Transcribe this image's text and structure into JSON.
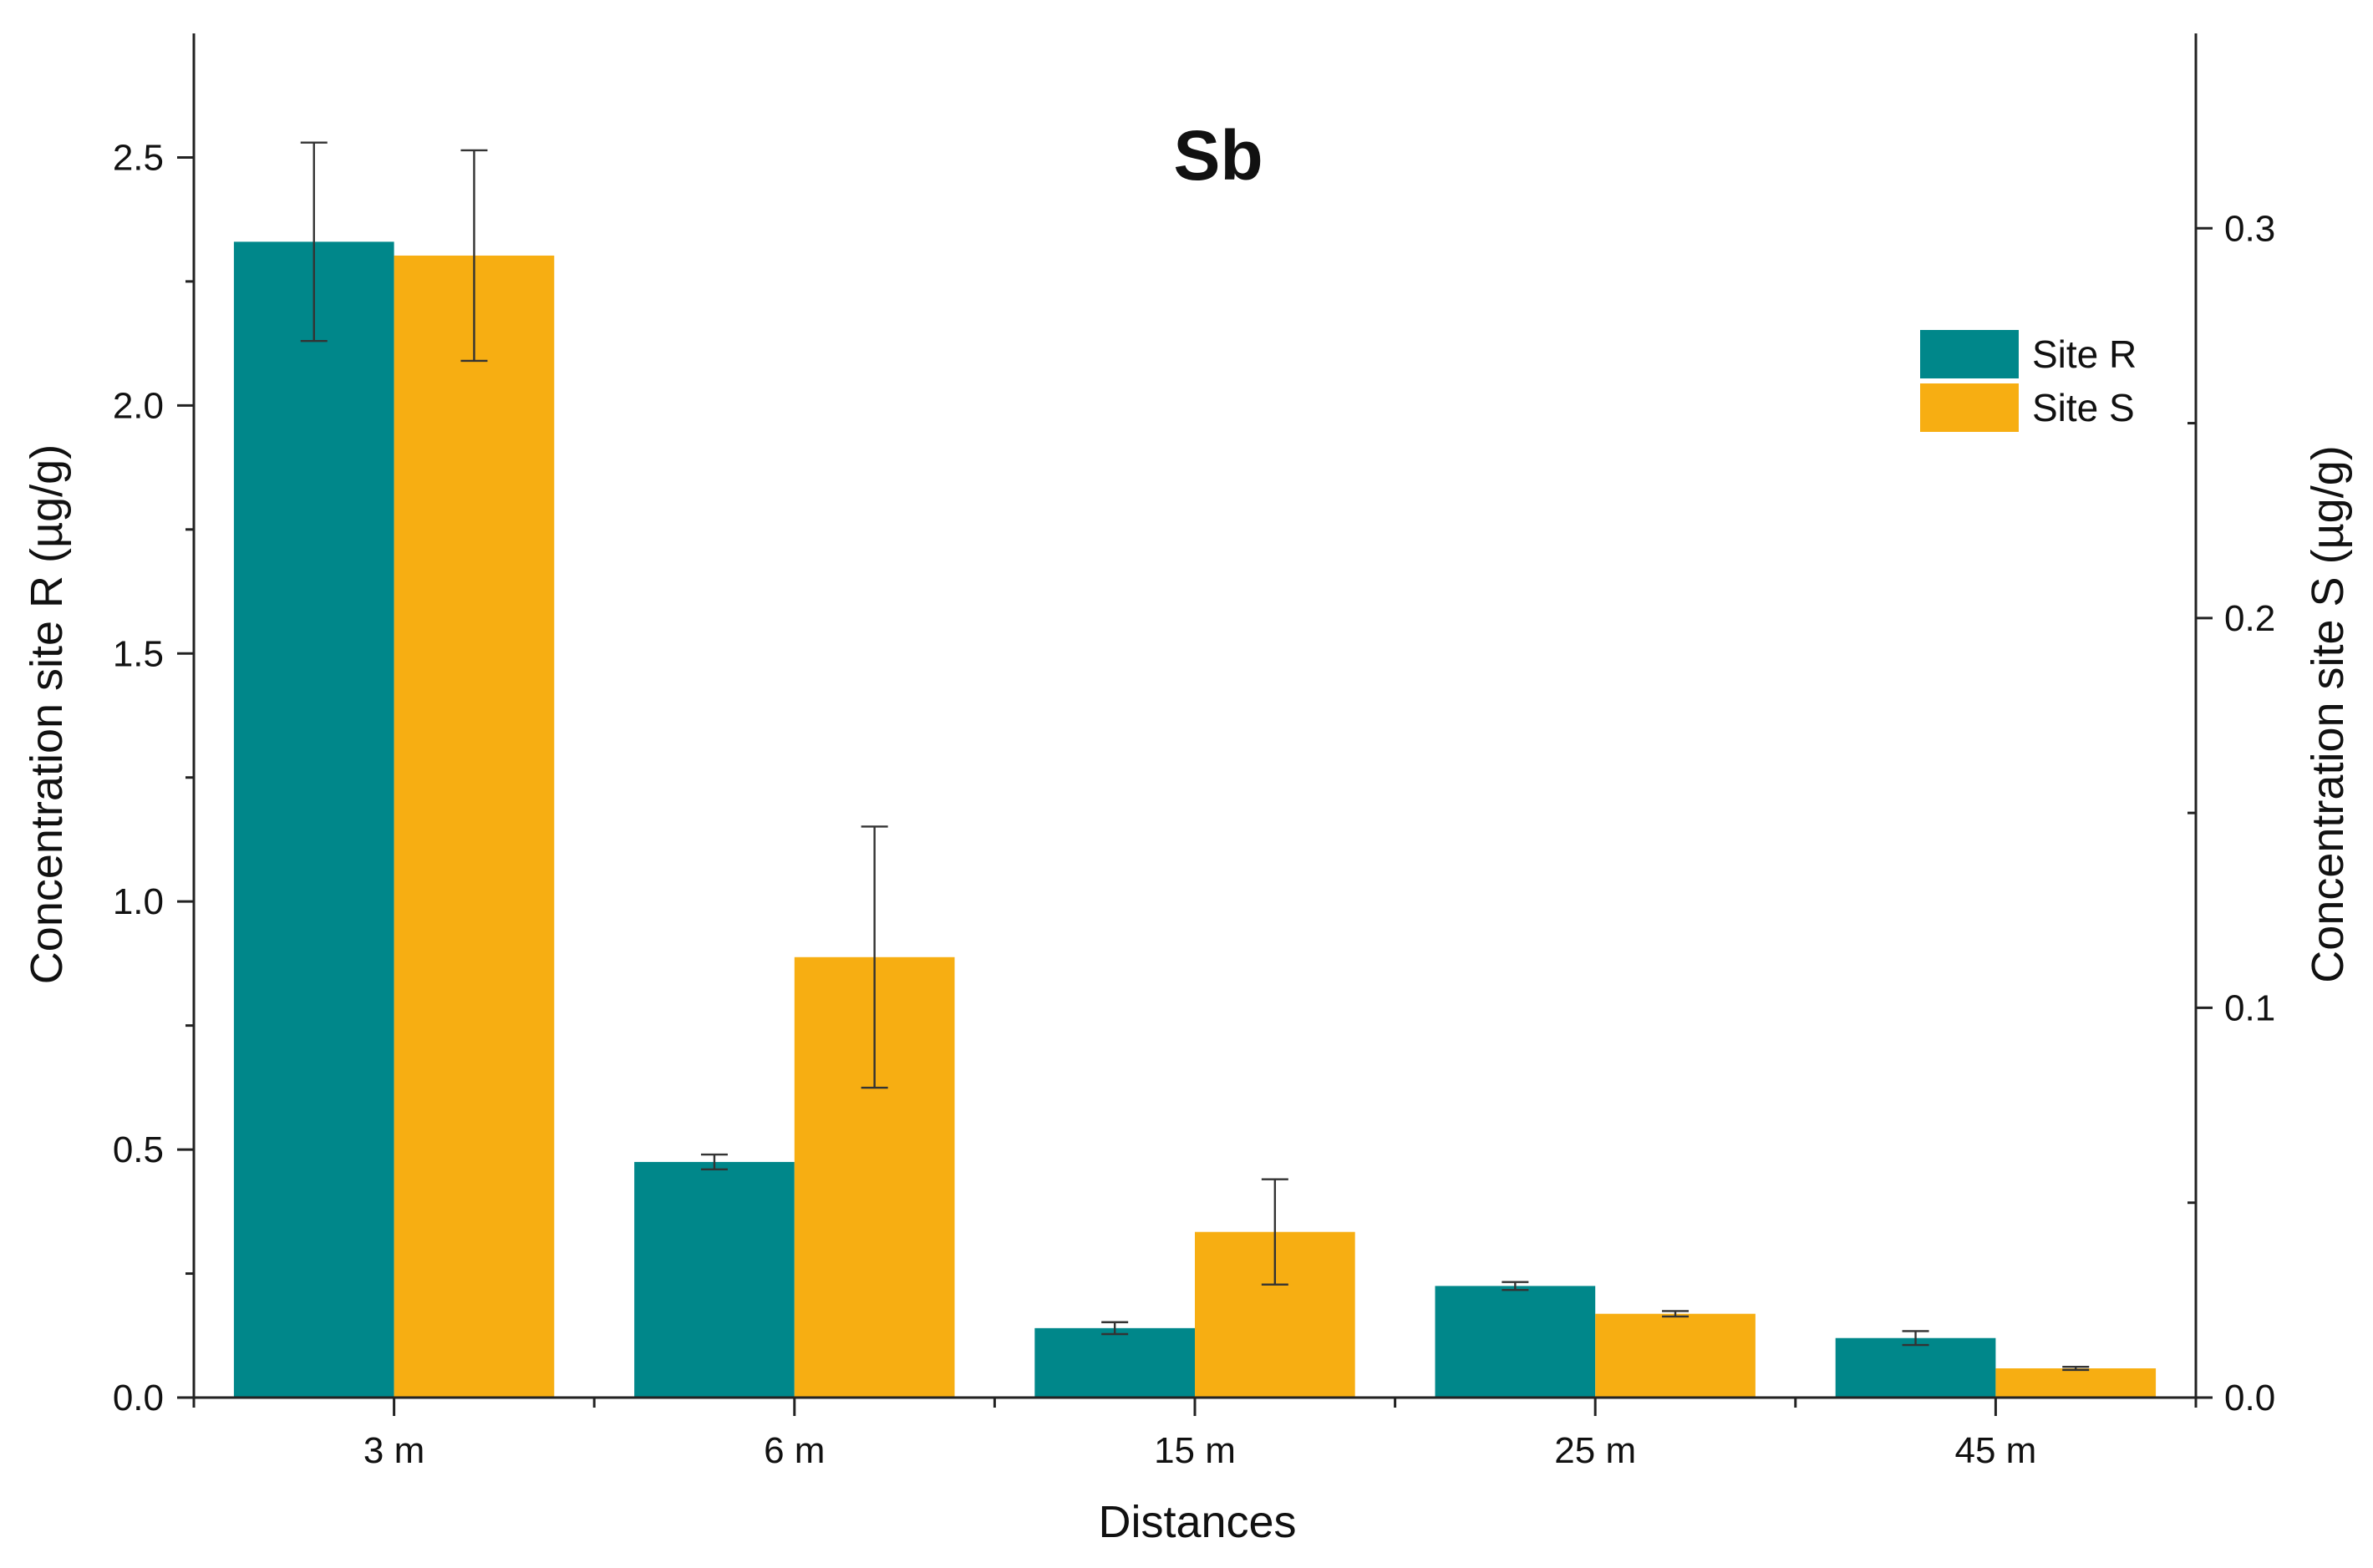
{
  "chart_data": {
    "type": "bar",
    "title": "Sb",
    "xlabel": "Distances",
    "ylabel_left": "Concentration site R (µg/g)",
    "ylabel_right": "Concentration site S (µg/g)",
    "categories": [
      "3 m",
      "6 m",
      "15 m",
      "25 m",
      "45 m"
    ],
    "ylim_left": [
      0,
      2.75
    ],
    "ylim_right": [
      0,
      0.35
    ],
    "yticks_left": [
      "0.0",
      "0.5",
      "1.0",
      "1.5",
      "2.0",
      "2.5"
    ],
    "yticks_right": [
      "0.0",
      "0.1",
      "0.2",
      "0.3"
    ],
    "series": [
      {
        "name": "Site R",
        "axis": "left",
        "color": "#00878A",
        "values": [
          2.33,
          0.475,
          0.14,
          0.225,
          0.12
        ],
        "errors": [
          0.2,
          0.015,
          0.012,
          0.008,
          0.014
        ]
      },
      {
        "name": "Site S",
        "axis": "right",
        "color": "#F7AE12",
        "values": [
          0.293,
          0.113,
          0.0425,
          0.0215,
          0.0075
        ],
        "errors": [
          0.027,
          0.0335,
          0.0135,
          0.0007,
          0.0004
        ]
      }
    ],
    "legend_position": "top-right",
    "grid": false
  }
}
